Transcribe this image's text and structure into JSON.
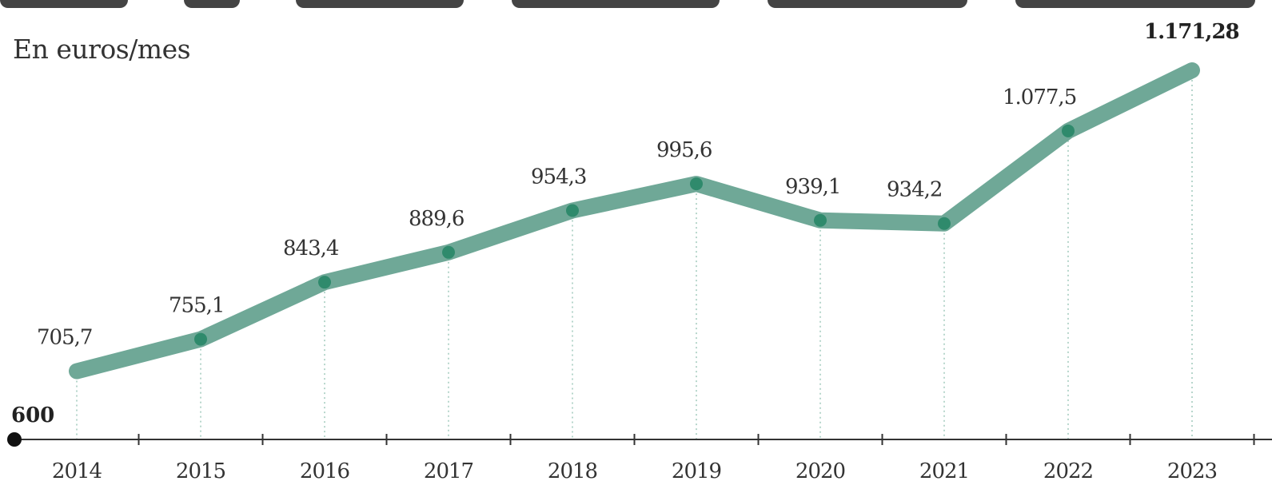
{
  "unit_label": "En euros/mes",
  "colors": {
    "line": "#6fa897",
    "marker": "#2f8a6c",
    "axis": "#333333",
    "gridline": "#9fc9bb",
    "text": "#333333"
  },
  "chart_data": {
    "type": "line",
    "title": "",
    "subtitle": "En euros/mes",
    "xlabel": "",
    "ylabel": "",
    "ylim": [
      600,
      1200
    ],
    "baseline_label": "600",
    "categories": [
      "2014",
      "2015",
      "2016",
      "2017",
      "2018",
      "2019",
      "2020",
      "2021",
      "2022",
      "2023"
    ],
    "x": [
      2014,
      2015,
      2016,
      2017,
      2018,
      2019,
      2020,
      2021,
      2022,
      2023
    ],
    "series": [
      {
        "values": [
          705.7,
          755.1,
          843.4,
          889.6,
          954.3,
          995.6,
          939.1,
          934.2,
          1077.5,
          1171.28
        ]
      }
    ],
    "value_labels": [
      "705,7",
      "755,1",
      "843,4",
      "889,6",
      "954,3",
      "995,6",
      "939,1",
      "934,2",
      "1.077,5",
      "1.171,28"
    ],
    "emphasized_label_index": 9,
    "grid": false,
    "legend": "none"
  }
}
